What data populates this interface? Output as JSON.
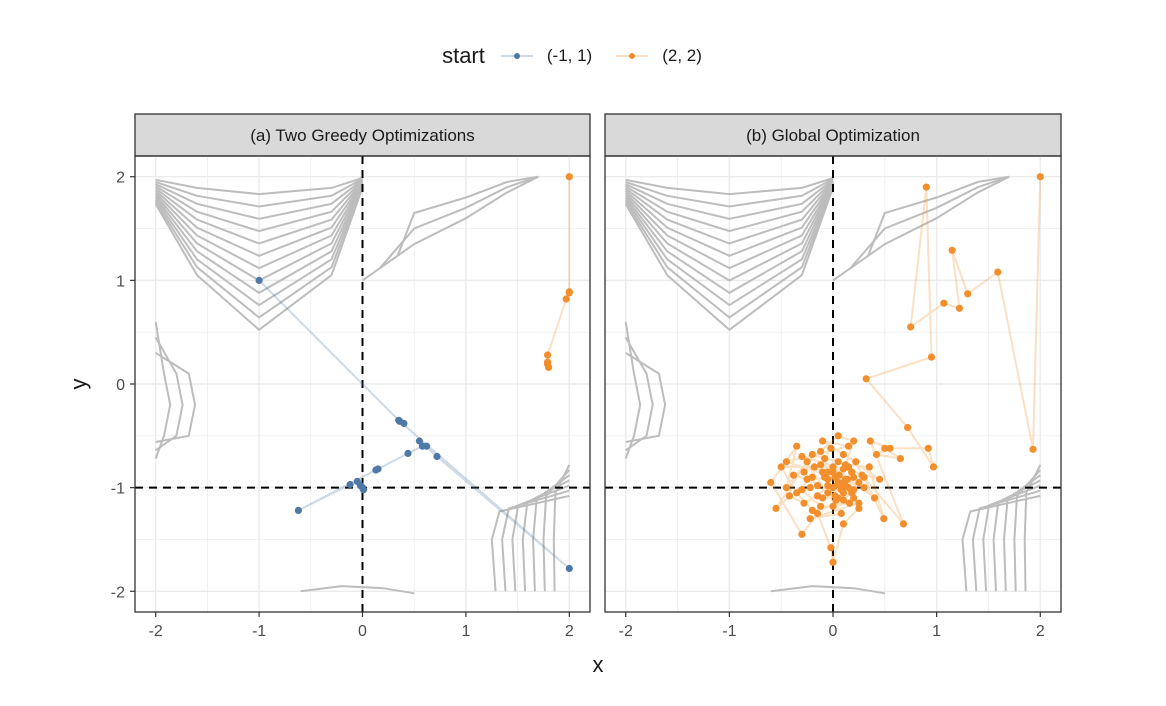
{
  "legend": {
    "title": "start",
    "items": [
      {
        "label": "(-1, 1)",
        "color": "#4e79a7"
      },
      {
        "label": "(2, 2)",
        "color": "#f28e2b"
      }
    ]
  },
  "axes": {
    "xlabel": "x",
    "ylabel": "y",
    "xlim": [
      -2.2,
      2.2
    ],
    "ylim": [
      -2.2,
      2.2
    ],
    "xticks": [
      -2,
      -1,
      0,
      1,
      2
    ],
    "yticks": [
      -2,
      -1,
      0,
      1,
      2
    ],
    "xtick_labels": [
      "-2",
      "-1",
      "0",
      "1",
      "2"
    ],
    "ytick_labels": [
      "-2",
      "-1",
      "0",
      "1",
      "2"
    ],
    "reference_lines": {
      "x": 0,
      "y": -1
    },
    "grid": true
  },
  "chart_data": [
    {
      "type": "line",
      "panel": "(a) Two Greedy Optimizations",
      "title": "(a) Two Greedy Optimizations",
      "xlabel": "x",
      "ylabel": "y",
      "xlim": [
        -2.2,
        2.2
      ],
      "ylim": [
        -2.2,
        2.2
      ],
      "series": [
        {
          "name": "(-1, 1)",
          "color": "#4e79a7",
          "points": [
            [
              -1.0,
              1.0
            ],
            [
              0.35,
              -0.35
            ],
            [
              0.4,
              -0.38
            ],
            [
              0.36,
              -0.36
            ],
            [
              2.0,
              -1.78
            ],
            [
              0.72,
              -0.7
            ],
            [
              0.55,
              -0.55
            ],
            [
              0.62,
              -0.6
            ],
            [
              0.58,
              -0.6
            ],
            [
              0.44,
              -0.67
            ],
            [
              0.15,
              -0.82
            ],
            [
              0.13,
              -0.83
            ],
            [
              -0.62,
              -1.22
            ],
            [
              -0.12,
              -0.97
            ],
            [
              -0.05,
              -0.94
            ],
            [
              -0.02,
              -0.98
            ],
            [
              0.0,
              -1.0
            ],
            [
              0.01,
              -1.02
            ]
          ]
        },
        {
          "name": "(2, 2)",
          "color": "#f28e2b",
          "points": [
            [
              2.0,
              2.0
            ],
            [
              2.0,
              0.88
            ],
            [
              2.0,
              0.89
            ],
            [
              1.97,
              0.82
            ],
            [
              1.79,
              0.28
            ],
            [
              1.79,
              0.21
            ],
            [
              1.79,
              0.19
            ],
            [
              1.8,
              0.16
            ]
          ]
        }
      ]
    },
    {
      "type": "line",
      "panel": "(b) Global Optimization",
      "title": "(b) Global Optimization",
      "xlabel": "x",
      "ylabel": "y",
      "xlim": [
        -2.2,
        2.2
      ],
      "ylim": [
        -2.2,
        2.2
      ],
      "series": [
        {
          "name": "(2, 2)",
          "color": "#f28e2b",
          "points": [
            [
              2.0,
              2.0
            ],
            [
              1.93,
              -0.63
            ],
            [
              1.59,
              1.08
            ],
            [
              1.3,
              0.87
            ],
            [
              1.15,
              1.29
            ],
            [
              1.22,
              0.73
            ],
            [
              1.07,
              0.78
            ],
            [
              0.75,
              0.55
            ],
            [
              0.9,
              1.9
            ],
            [
              0.95,
              0.26
            ],
            [
              0.32,
              0.05
            ],
            [
              0.72,
              -0.42
            ],
            [
              0.97,
              -0.8
            ],
            [
              0.92,
              -0.62
            ],
            [
              0.5,
              -0.62
            ],
            [
              0.65,
              -0.72
            ],
            [
              0.42,
              -0.68
            ],
            [
              0.55,
              -0.62
            ],
            [
              0.36,
              -0.55
            ],
            [
              0.68,
              -1.35
            ],
            [
              0.3,
              -0.9
            ],
            [
              0.49,
              -1.3
            ],
            [
              0.35,
              -0.8
            ],
            [
              0.12,
              -0.78
            ],
            [
              0.2,
              -0.55
            ],
            [
              0.05,
              -0.5
            ],
            [
              -0.12,
              -0.65
            ],
            [
              -0.05,
              -0.85
            ],
            [
              0.1,
              -0.95
            ],
            [
              -0.2,
              -0.9
            ],
            [
              -0.55,
              -1.2
            ],
            [
              -0.25,
              -0.75
            ],
            [
              -0.45,
              -1.0
            ],
            [
              -0.35,
              -0.6
            ],
            [
              -0.6,
              -0.95
            ],
            [
              -0.3,
              -1.45
            ],
            [
              -0.15,
              -1.25
            ],
            [
              -0.02,
              -1.58
            ],
            [
              0.0,
              -1.72
            ],
            [
              0.1,
              -1.35
            ],
            [
              0.25,
              -1.2
            ],
            [
              0.18,
              -1.05
            ],
            [
              0.05,
              -1.1
            ],
            [
              -0.1,
              -1.1
            ],
            [
              0.1,
              -1.0
            ],
            [
              0.2,
              -0.9
            ],
            [
              0.15,
              -1.0
            ],
            [
              0.05,
              -0.95
            ],
            [
              0.12,
              -0.98
            ],
            [
              0.08,
              -1.02
            ],
            [
              0.0,
              -1.0
            ],
            [
              0.1,
              -1.05
            ],
            [
              0.14,
              -0.92
            ],
            [
              0.06,
              -0.88
            ],
            [
              0.02,
              -0.9
            ],
            [
              -0.05,
              -0.92
            ],
            [
              -0.1,
              -0.85
            ],
            [
              -0.18,
              -0.8
            ],
            [
              -0.22,
              -1.0
            ],
            [
              -0.3,
              -1.02
            ],
            [
              -0.12,
              -1.18
            ],
            [
              0.0,
              -1.18
            ],
            [
              0.2,
              -1.1
            ],
            [
              0.25,
              -0.95
            ],
            [
              0.15,
              -0.8
            ],
            [
              0.05,
              -0.75
            ],
            [
              -0.08,
              -0.72
            ],
            [
              -0.2,
              -0.68
            ],
            [
              -0.28,
              -0.85
            ],
            [
              -0.15,
              -0.98
            ],
            [
              -0.05,
              -1.05
            ],
            [
              0.02,
              -1.08
            ],
            [
              0.1,
              -1.12
            ],
            [
              0.2,
              -1.02
            ],
            [
              0.28,
              -0.88
            ],
            [
              0.22,
              -0.75
            ],
            [
              0.1,
              -0.68
            ],
            [
              -0.02,
              -0.62
            ],
            [
              -0.12,
              -0.78
            ],
            [
              -0.25,
              -0.92
            ],
            [
              -0.38,
              -0.88
            ],
            [
              -0.42,
              -1.08
            ],
            [
              -0.28,
              -1.15
            ],
            [
              -0.15,
              -1.08
            ],
            [
              -0.05,
              -0.98
            ],
            [
              0.04,
              -0.97
            ],
            [
              0.12,
              -0.92
            ],
            [
              0.18,
              -0.85
            ],
            [
              0.1,
              -0.82
            ],
            [
              0.0,
              -0.85
            ],
            [
              -0.08,
              -0.9
            ],
            [
              0.03,
              -1.12
            ],
            [
              0.16,
              -1.15
            ],
            [
              -0.2,
              -1.22
            ],
            [
              -0.35,
              -1.05
            ],
            [
              -0.5,
              -0.8
            ],
            [
              0.0,
              -0.8
            ],
            [
              0.4,
              -1.1
            ],
            [
              0.3,
              -1.0
            ],
            [
              -0.45,
              -0.75
            ],
            [
              0.15,
              -0.6
            ],
            [
              -0.1,
              -0.55
            ],
            [
              0.45,
              -0.92
            ],
            [
              -0.3,
              -0.7
            ],
            [
              0.08,
              -1.25
            ],
            [
              -0.22,
              -1.3
            ],
            [
              0.25,
              -1.15
            ]
          ]
        }
      ]
    }
  ]
}
